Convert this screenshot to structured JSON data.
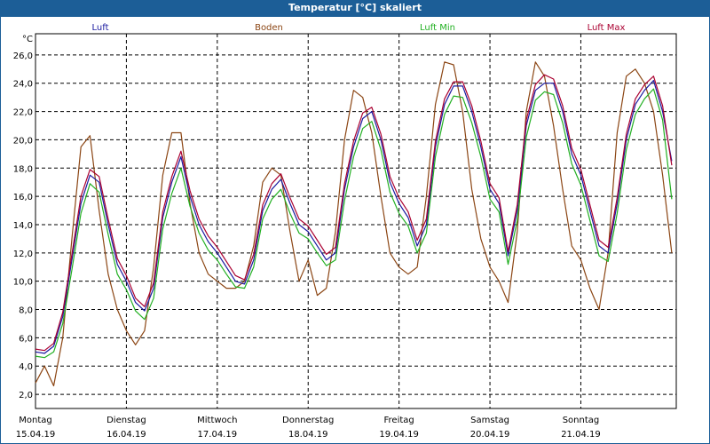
{
  "chart_data": {
    "type": "line",
    "title": "Temperatur [°C] skaliert",
    "ylabel": "°C",
    "ylim": [
      1.0,
      27.5
    ],
    "xlim": [
      0,
      7.05
    ],
    "yticks": [
      2.0,
      4.0,
      6.0,
      8.0,
      10.0,
      12.0,
      14.0,
      16.0,
      18.0,
      20.0,
      22.0,
      24.0,
      26.0
    ],
    "ytick_labels": [
      "2,0",
      "4,0",
      "6,0",
      "8,0",
      "10,0",
      "12,0",
      "14,0",
      "16,0",
      "18,0",
      "20,0",
      "22,0",
      "24,0",
      "26,0"
    ],
    "x_days": [
      {
        "x": 0,
        "day": "Montag",
        "date": "15.04.19"
      },
      {
        "x": 1,
        "day": "Dienstag",
        "date": "16.04.19"
      },
      {
        "x": 2,
        "day": "Mittwoch",
        "date": "17.04.19"
      },
      {
        "x": 3,
        "day": "Donnerstag",
        "date": "18.04.19"
      },
      {
        "x": 4,
        "day": "Freitag",
        "date": "19.04.19"
      },
      {
        "x": 5,
        "day": "Samstag",
        "date": "20.04.19"
      },
      {
        "x": 6,
        "day": "Sonntag",
        "date": "21.04.19"
      }
    ],
    "grid": true,
    "series": [
      {
        "name": "Luft",
        "color": "#1a1aa0",
        "x": [
          0,
          0.1,
          0.2,
          0.3,
          0.4,
          0.5,
          0.6,
          0.7,
          0.8,
          0.9,
          1.0,
          1.1,
          1.2,
          1.3,
          1.4,
          1.5,
          1.6,
          1.7,
          1.8,
          1.9,
          2.0,
          2.1,
          2.2,
          2.3,
          2.4,
          2.5,
          2.6,
          2.7,
          2.8,
          2.9,
          3.0,
          3.1,
          3.2,
          3.3,
          3.4,
          3.5,
          3.6,
          3.7,
          3.8,
          3.9,
          4.0,
          4.1,
          4.2,
          4.3,
          4.4,
          4.5,
          4.6,
          4.7,
          4.8,
          4.9,
          5.0,
          5.1,
          5.2,
          5.3,
          5.4,
          5.5,
          5.6,
          5.7,
          5.8,
          5.9,
          6.0,
          6.1,
          6.2,
          6.3,
          6.4,
          6.5,
          6.6,
          6.7,
          6.8,
          6.9,
          7.0
        ],
        "values": [
          5.0,
          4.9,
          5.4,
          7.5,
          11.5,
          15.5,
          17.5,
          17.0,
          14.0,
          11.2,
          10.0,
          8.5,
          7.9,
          9.5,
          14.5,
          17.0,
          18.8,
          16.0,
          14.0,
          12.8,
          12.0,
          11.0,
          10.0,
          9.8,
          11.5,
          15.0,
          16.5,
          17.2,
          15.5,
          14.0,
          13.5,
          12.5,
          11.5,
          12.0,
          16.5,
          19.5,
          21.5,
          22.0,
          20.0,
          17.0,
          15.5,
          14.5,
          12.5,
          14.0,
          19.5,
          22.5,
          23.8,
          23.8,
          22.0,
          19.5,
          16.5,
          15.5,
          11.8,
          15.0,
          21.0,
          23.5,
          24.0,
          24.0,
          22.0,
          19.0,
          17.5,
          15.0,
          12.5,
          12.0,
          15.5,
          20.0,
          22.5,
          23.5,
          24.2,
          22.0,
          18.5
        ]
      },
      {
        "name": "Boden",
        "color": "#8b4513",
        "x": [
          0,
          0.1,
          0.2,
          0.3,
          0.4,
          0.5,
          0.6,
          0.7,
          0.8,
          0.9,
          1.0,
          1.1,
          1.2,
          1.3,
          1.4,
          1.5,
          1.6,
          1.7,
          1.8,
          1.9,
          2.0,
          2.1,
          2.2,
          2.3,
          2.4,
          2.5,
          2.6,
          2.7,
          2.8,
          2.9,
          3.0,
          3.1,
          3.2,
          3.3,
          3.4,
          3.5,
          3.6,
          3.7,
          3.8,
          3.9,
          4.0,
          4.1,
          4.2,
          4.3,
          4.4,
          4.5,
          4.6,
          4.7,
          4.8,
          4.9,
          5.0,
          5.1,
          5.2,
          5.3,
          5.4,
          5.5,
          5.6,
          5.7,
          5.8,
          5.9,
          6.0,
          6.1,
          6.2,
          6.3,
          6.4,
          6.5,
          6.6,
          6.7,
          6.8,
          6.9,
          7.0
        ],
        "values": [
          2.8,
          4.0,
          2.6,
          6.0,
          13.0,
          19.5,
          20.3,
          15.0,
          10.5,
          8.0,
          6.5,
          5.5,
          6.5,
          11.0,
          17.5,
          20.5,
          20.5,
          15.5,
          12.0,
          10.5,
          10.0,
          9.5,
          9.5,
          10.0,
          12.5,
          17.0,
          18.0,
          17.5,
          13.5,
          10.0,
          11.5,
          9.0,
          9.5,
          13.5,
          20.0,
          23.5,
          23.0,
          20.5,
          16.0,
          12.0,
          11.0,
          10.5,
          11.0,
          16.0,
          22.5,
          25.5,
          25.3,
          22.0,
          16.5,
          13.0,
          11.0,
          10.0,
          8.5,
          13.5,
          22.0,
          25.5,
          24.5,
          21.0,
          16.5,
          12.5,
          11.5,
          9.5,
          8.0,
          12.0,
          20.5,
          24.5,
          25.0,
          24.0,
          22.0,
          17.5,
          12.0
        ]
      },
      {
        "name": "Luft Min",
        "color": "#22b022",
        "x": [
          0,
          0.1,
          0.2,
          0.3,
          0.4,
          0.5,
          0.6,
          0.7,
          0.8,
          0.9,
          1.0,
          1.1,
          1.2,
          1.3,
          1.4,
          1.5,
          1.6,
          1.7,
          1.8,
          1.9,
          2.0,
          2.1,
          2.2,
          2.3,
          2.4,
          2.5,
          2.6,
          2.7,
          2.8,
          2.9,
          3.0,
          3.1,
          3.2,
          3.3,
          3.4,
          3.5,
          3.6,
          3.7,
          3.8,
          3.9,
          4.0,
          4.1,
          4.2,
          4.3,
          4.4,
          4.5,
          4.6,
          4.7,
          4.8,
          4.9,
          5.0,
          5.1,
          5.2,
          5.3,
          5.4,
          5.5,
          5.6,
          5.7,
          5.8,
          5.9,
          6.0,
          6.1,
          6.2,
          6.3,
          6.4,
          6.5,
          6.6,
          6.7,
          6.8,
          6.9,
          7.0
        ],
        "values": [
          4.7,
          4.6,
          5.0,
          7.0,
          10.8,
          14.8,
          16.9,
          16.3,
          13.3,
          10.5,
          9.4,
          7.9,
          7.3,
          8.8,
          13.7,
          16.2,
          18.0,
          15.3,
          13.4,
          12.2,
          11.5,
          10.5,
          9.6,
          9.5,
          11.0,
          14.4,
          15.8,
          16.5,
          14.8,
          13.4,
          13.0,
          12.0,
          11.1,
          11.5,
          15.7,
          18.8,
          20.8,
          21.3,
          19.3,
          16.3,
          14.8,
          13.9,
          12.0,
          13.4,
          18.8,
          21.8,
          23.1,
          23.0,
          21.2,
          18.8,
          15.8,
          14.9,
          11.2,
          14.3,
          20.2,
          22.8,
          23.4,
          23.2,
          21.2,
          18.3,
          16.8,
          14.3,
          11.8,
          11.4,
          14.8,
          19.3,
          21.8,
          22.9,
          23.6,
          21.4,
          15.8
        ]
      },
      {
        "name": "Luft Max",
        "color": "#aa0030",
        "x": [
          0,
          0.1,
          0.2,
          0.3,
          0.4,
          0.5,
          0.6,
          0.7,
          0.8,
          0.9,
          1.0,
          1.1,
          1.2,
          1.3,
          1.4,
          1.5,
          1.6,
          1.7,
          1.8,
          1.9,
          2.0,
          2.1,
          2.2,
          2.3,
          2.4,
          2.5,
          2.6,
          2.7,
          2.8,
          2.9,
          3.0,
          3.1,
          3.2,
          3.3,
          3.4,
          3.5,
          3.6,
          3.7,
          3.8,
          3.9,
          4.0,
          4.1,
          4.2,
          4.3,
          4.4,
          4.5,
          4.6,
          4.7,
          4.8,
          4.9,
          5.0,
          5.1,
          5.2,
          5.3,
          5.4,
          5.5,
          5.6,
          5.7,
          5.8,
          5.9,
          6.0,
          6.1,
          6.2,
          6.3,
          6.4,
          6.5,
          6.6,
          6.7,
          6.8,
          6.9,
          7.0
        ],
        "values": [
          5.2,
          5.1,
          5.6,
          7.8,
          11.9,
          16.0,
          17.9,
          17.4,
          14.4,
          11.6,
          10.4,
          8.8,
          8.2,
          9.9,
          14.9,
          17.4,
          19.2,
          16.4,
          14.4,
          13.2,
          12.4,
          11.4,
          10.4,
          10.1,
          11.9,
          15.4,
          16.9,
          17.6,
          15.9,
          14.4,
          13.9,
          12.9,
          11.9,
          12.4,
          16.9,
          19.9,
          21.9,
          22.3,
          20.4,
          17.4,
          15.9,
          14.9,
          12.9,
          14.4,
          19.9,
          22.9,
          24.1,
          24.1,
          22.4,
          19.9,
          16.9,
          15.9,
          12.1,
          15.4,
          21.4,
          23.9,
          24.6,
          24.3,
          22.4,
          19.4,
          17.9,
          15.4,
          12.9,
          12.4,
          15.9,
          20.4,
          22.9,
          23.9,
          24.5,
          22.4,
          18.2
        ]
      }
    ]
  }
}
